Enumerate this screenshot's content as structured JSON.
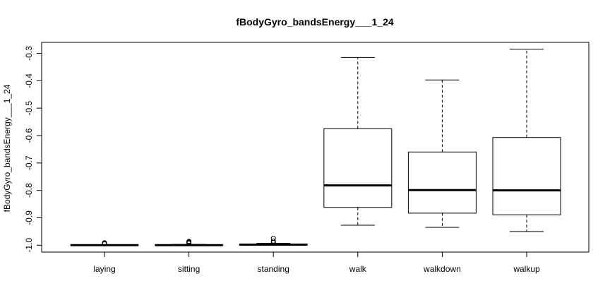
{
  "chart_data": {
    "type": "boxplot",
    "title": "fBodyGyro_bandsEnergy___1_24",
    "xlabel": "",
    "ylabel": "fBodyGyro_bandsEnergy___1_24",
    "ylim": [
      -1.025,
      -0.26
    ],
    "yticks": [
      -1.0,
      -0.9,
      -0.8,
      -0.7,
      -0.6,
      -0.5,
      -0.4,
      -0.3
    ],
    "ytick_labels": [
      "-1.0",
      "-0.9",
      "-0.8",
      "-0.7",
      "-0.6",
      "-0.5",
      "-0.4",
      "-0.3"
    ],
    "categories": [
      "laying",
      "sitting",
      "standing",
      "walk",
      "walkdown",
      "walkup"
    ],
    "boxes": [
      {
        "min": -1.0,
        "q1": -1.0,
        "median": -1.0,
        "q3": -0.999,
        "max": -0.998,
        "outliers": [
          -0.995,
          -0.993,
          -0.991
        ]
      },
      {
        "min": -1.0,
        "q1": -1.0,
        "median": -1.0,
        "q3": -0.999,
        "max": -0.997,
        "outliers": [
          -0.993,
          -0.99,
          -0.988,
          -0.986
        ]
      },
      {
        "min": -1.0,
        "q1": -0.999,
        "median": -0.998,
        "q3": -0.996,
        "max": -0.993,
        "outliers": [
          -0.99,
          -0.985,
          -0.975
        ]
      },
      {
        "min": -0.927,
        "q1": -0.862,
        "median": -0.782,
        "q3": -0.575,
        "max": -0.315
      },
      {
        "min": -0.935,
        "q1": -0.883,
        "median": -0.799,
        "q3": -0.66,
        "max": -0.397
      },
      {
        "min": -0.95,
        "q1": -0.889,
        "median": -0.8,
        "q3": -0.607,
        "max": -0.285
      }
    ]
  }
}
